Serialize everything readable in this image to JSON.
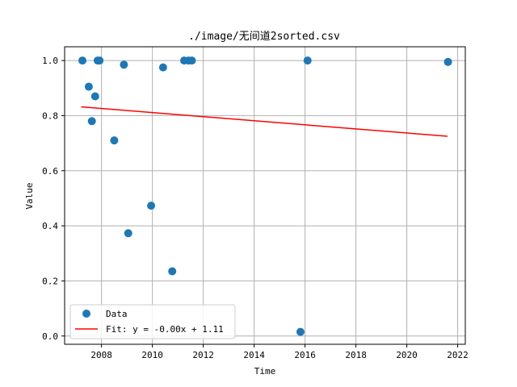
{
  "chart_data": {
    "type": "scatter",
    "title": "./image/无间道2sorted.csv",
    "xlabel": "Time",
    "ylabel": "Value",
    "xlim": [
      2006.55,
      2022.3
    ],
    "ylim": [
      -0.03,
      1.05
    ],
    "xticks": [
      2008,
      2010,
      2012,
      2014,
      2016,
      2018,
      2020,
      2022
    ],
    "yticks": [
      0.0,
      0.2,
      0.4,
      0.6,
      0.8,
      1.0
    ],
    "xtick_labels": [
      "2008",
      "2010",
      "2012",
      "2014",
      "2016",
      "2018",
      "2020",
      "2022"
    ],
    "ytick_labels": [
      "0.0",
      "0.2",
      "0.4",
      "0.6",
      "0.8",
      "1.0"
    ],
    "grid": true,
    "legend_position": "lower-left",
    "series": [
      {
        "name": "Data",
        "kind": "scatter",
        "color": "#1f77b4",
        "points": [
          {
            "x": 2007.25,
            "y": 1.0
          },
          {
            "x": 2007.5,
            "y": 0.905
          },
          {
            "x": 2007.62,
            "y": 0.78
          },
          {
            "x": 2007.75,
            "y": 0.87
          },
          {
            "x": 2007.85,
            "y": 1.0
          },
          {
            "x": 2007.92,
            "y": 1.0
          },
          {
            "x": 2008.5,
            "y": 0.71
          },
          {
            "x": 2008.88,
            "y": 0.985
          },
          {
            "x": 2009.05,
            "y": 0.373
          },
          {
            "x": 2009.95,
            "y": 0.473
          },
          {
            "x": 2010.42,
            "y": 0.975
          },
          {
            "x": 2010.78,
            "y": 0.235
          },
          {
            "x": 2011.25,
            "y": 1.0
          },
          {
            "x": 2011.42,
            "y": 1.0
          },
          {
            "x": 2011.55,
            "y": 1.0
          },
          {
            "x": 2015.82,
            "y": 0.015
          },
          {
            "x": 2016.1,
            "y": 1.0
          },
          {
            "x": 2021.62,
            "y": 0.995
          }
        ]
      },
      {
        "name": "Fit: y = -0.00x + 1.11",
        "kind": "line",
        "color": "#ff0000",
        "points": [
          {
            "x": 2007.2,
            "y": 0.832
          },
          {
            "x": 2021.6,
            "y": 0.725
          }
        ]
      }
    ]
  }
}
